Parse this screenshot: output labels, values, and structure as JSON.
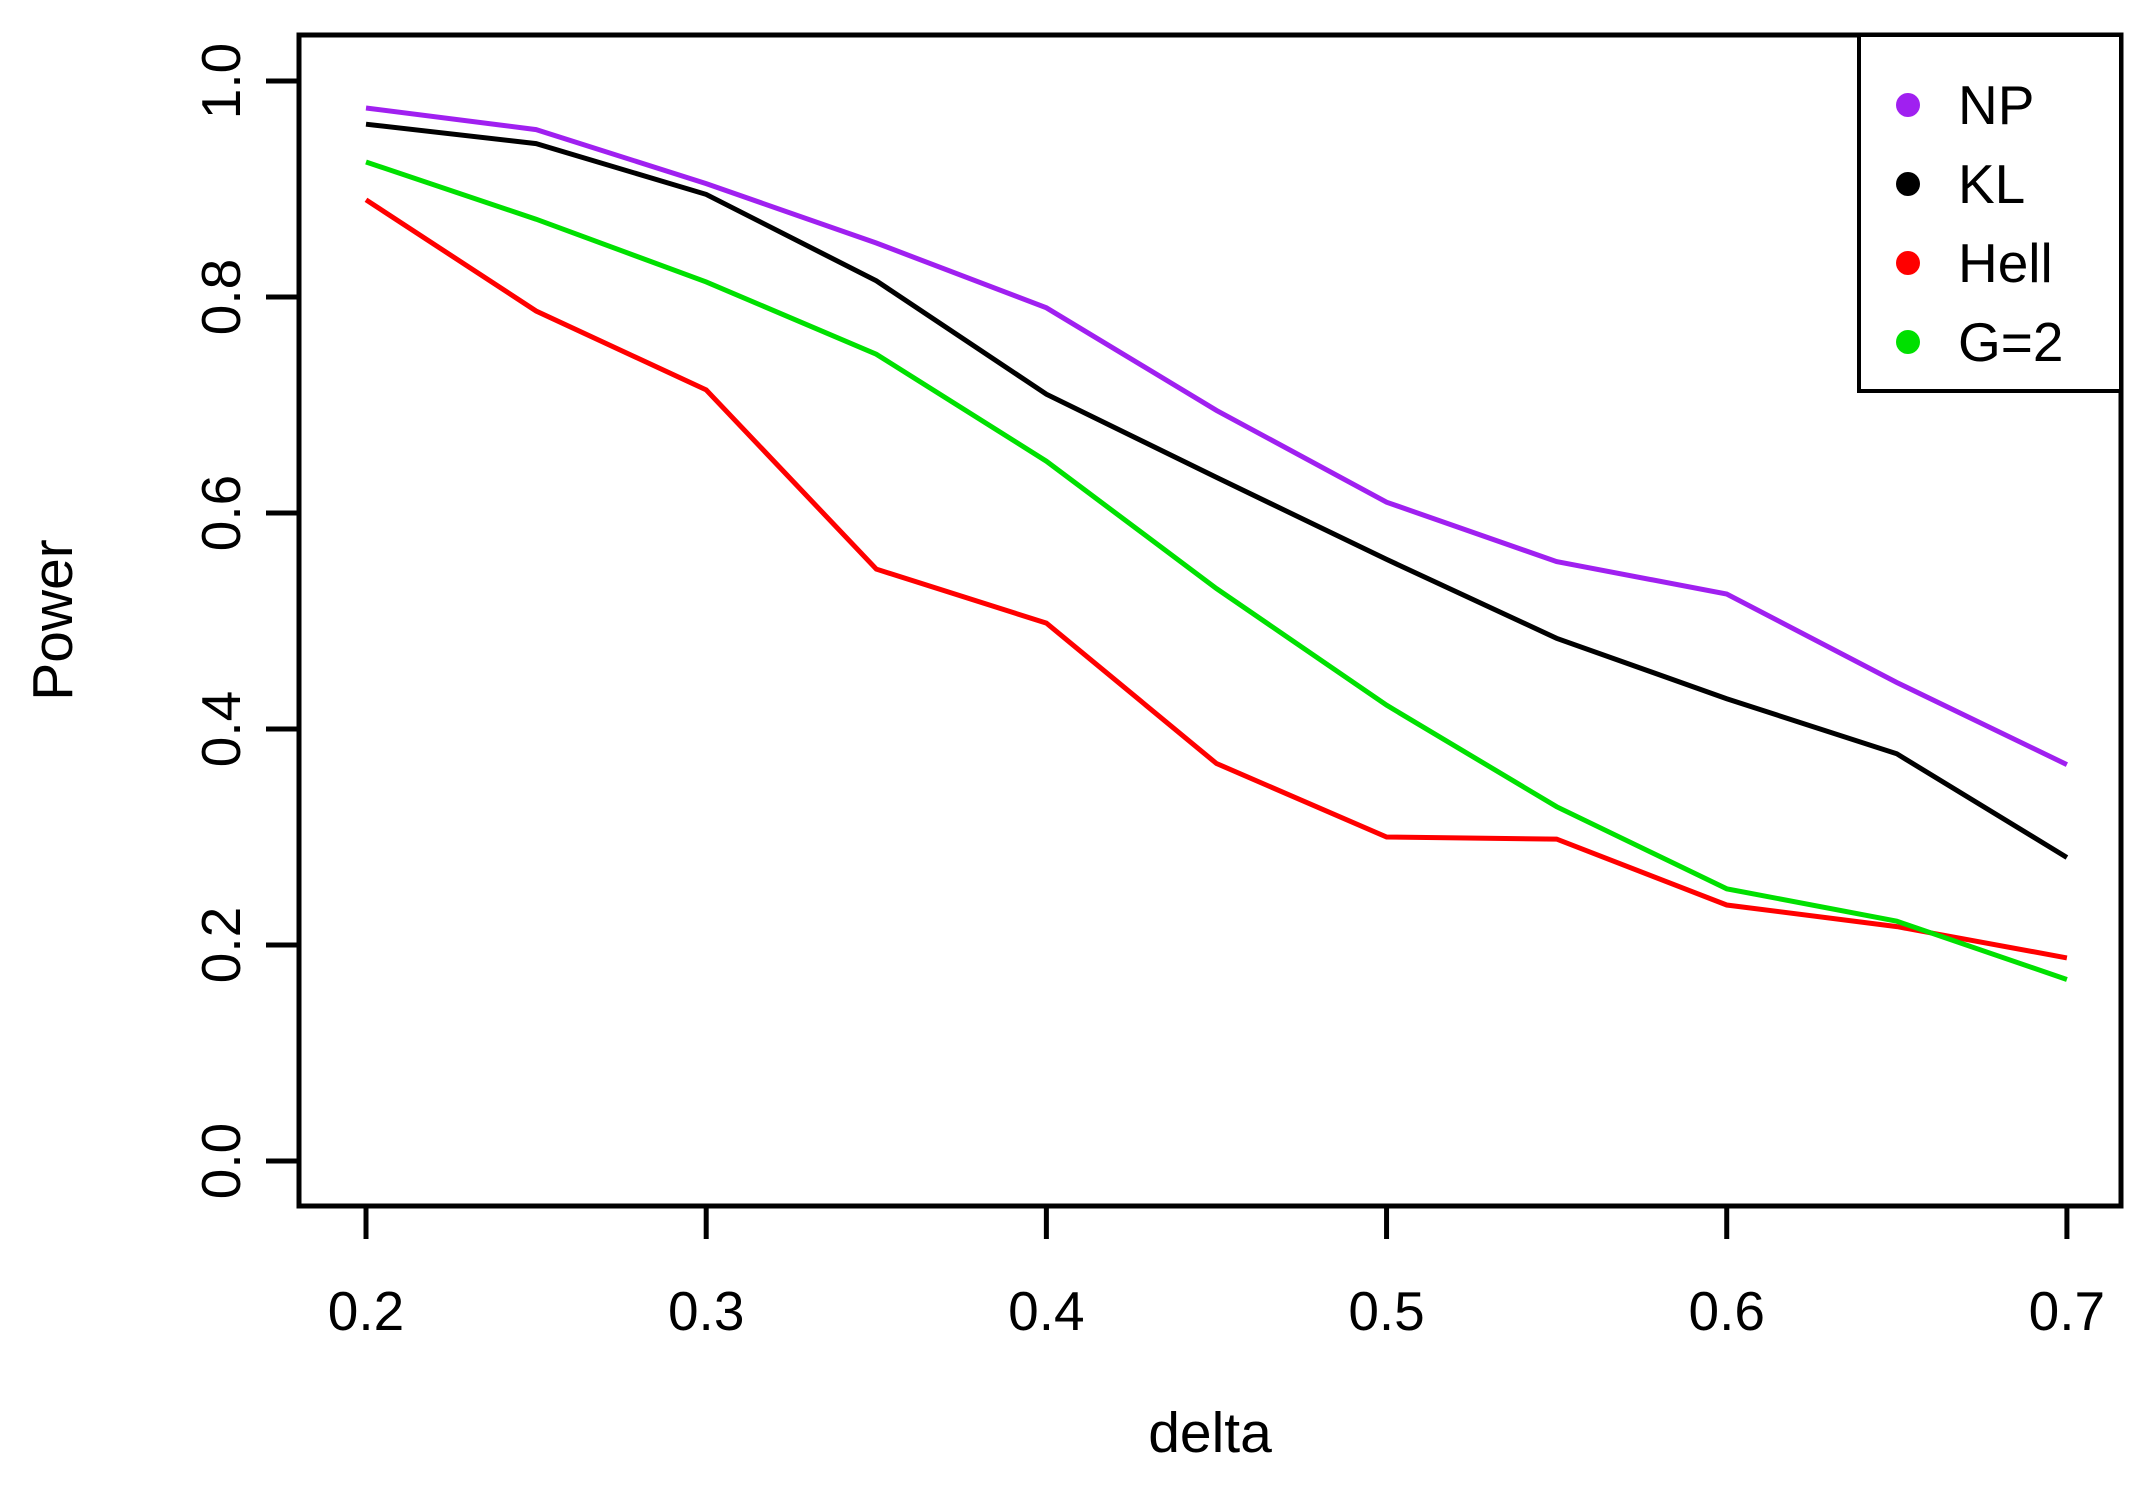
{
  "chart_data": {
    "type": "line",
    "title": "",
    "xlabel": "delta",
    "ylabel": "Power",
    "x": [
      0.2,
      0.25,
      0.3,
      0.35,
      0.4,
      0.45,
      0.5,
      0.55,
      0.6,
      0.65,
      0.7
    ],
    "series": [
      {
        "name": "NP",
        "color": "#A020F0",
        "values": [
          0.975,
          0.955,
          0.905,
          0.85,
          0.79,
          0.695,
          0.61,
          0.555,
          0.525,
          0.443,
          0.367
        ]
      },
      {
        "name": "KL",
        "color": "#000000",
        "values": [
          0.96,
          0.942,
          0.895,
          0.815,
          0.71,
          0.633,
          0.557,
          0.484,
          0.428,
          0.377,
          0.281
        ]
      },
      {
        "name": "Hell",
        "color": "#FF0000",
        "values": [
          0.89,
          0.787,
          0.714,
          0.548,
          0.498,
          0.368,
          0.3,
          0.298,
          0.237,
          0.217,
          0.188
        ]
      },
      {
        "name": "G=2",
        "color": "#00E000",
        "values": [
          0.925,
          0.872,
          0.814,
          0.747,
          0.648,
          0.53,
          0.422,
          0.328,
          0.252,
          0.222,
          0.168
        ]
      }
    ],
    "x_ticks": [
      0.2,
      0.3,
      0.4,
      0.5,
      0.6,
      0.7
    ],
    "x_tick_labels": [
      "0.2",
      "0.3",
      "0.4",
      "0.5",
      "0.6",
      "0.7"
    ],
    "y_ticks": [
      0.0,
      0.2,
      0.4,
      0.6,
      0.8,
      1.0
    ],
    "y_tick_labels": [
      "0.0",
      "0.2",
      "0.4",
      "0.6",
      "0.8",
      "1.0"
    ],
    "xlim": [
      0.1803,
      0.7159
    ],
    "ylim": [
      -0.0417,
      1.0426
    ],
    "grid": false,
    "legend": {
      "position": "top-right",
      "marker": "dot",
      "items": [
        "NP",
        "KL",
        "Hell",
        "G=2"
      ]
    }
  }
}
